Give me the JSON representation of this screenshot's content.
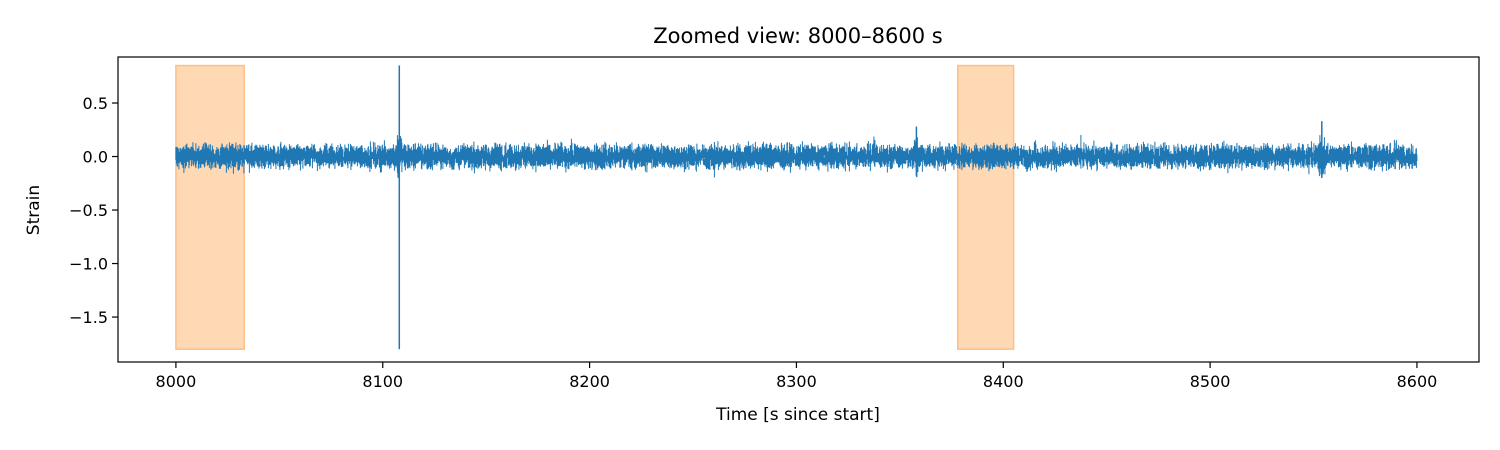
{
  "chart_data": {
    "type": "line",
    "title": "Zoomed view: 8000–8600 s",
    "xlabel": "Time [s since start]",
    "ylabel": "Strain",
    "xlim": [
      7972,
      8630
    ],
    "ylim": [
      -1.92,
      0.93
    ],
    "x_ticks": [
      8000,
      8100,
      8200,
      8300,
      8400,
      8500,
      8600
    ],
    "x_tick_labels": [
      "8000",
      "8100",
      "8200",
      "8300",
      "8400",
      "8500",
      "8600"
    ],
    "y_ticks": [
      0.5,
      0.0,
      -0.5,
      -1.0,
      -1.5
    ],
    "y_tick_labels": [
      "0.5",
      "0.0",
      "−0.5",
      "−1.0",
      "−1.5"
    ],
    "grid": false,
    "series": [
      {
        "color": "#1f77b4",
        "x_range": [
          8000,
          8600
        ],
        "noise_envelope": [
          -0.2,
          0.2
        ],
        "spikes": [
          {
            "x": 8108,
            "y_max": 0.85,
            "y_min": -1.8
          },
          {
            "x": 8358,
            "y_max": 0.28,
            "y_min": -0.18
          },
          {
            "x": 8554,
            "y_max": 0.33,
            "y_min": -0.2
          }
        ]
      }
    ],
    "shaded_regions": [
      {
        "x_start": 8000,
        "x_end": 8033,
        "y_min": -1.8,
        "y_max": 0.85,
        "color": "#ffd9b3",
        "edge_color": "#ffbe86"
      },
      {
        "x_start": 8378,
        "x_end": 8405,
        "y_min": -1.8,
        "y_max": 0.85,
        "color": "#ffd9b3",
        "edge_color": "#ffbe86"
      }
    ]
  }
}
